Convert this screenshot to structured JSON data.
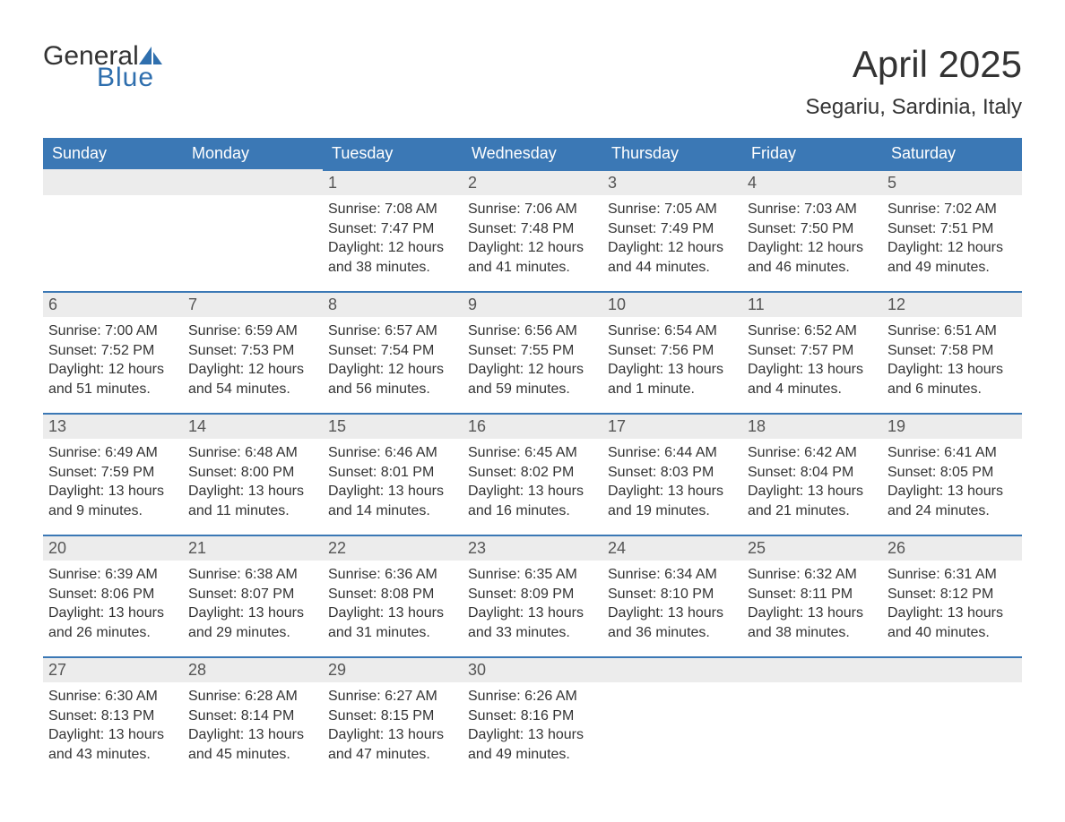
{
  "brand": {
    "general": "General",
    "blue": "Blue",
    "sail_color": "#2f6fae"
  },
  "title": "April 2025",
  "location": "Segariu, Sardinia, Italy",
  "header_bg": "#3b78b5",
  "header_fg": "#ffffff",
  "daybar_bg": "#ececec",
  "daybar_border": "#3b78b5",
  "body_bg": "#ffffff",
  "text_color": "#333333",
  "day_headers": [
    "Sunday",
    "Monday",
    "Tuesday",
    "Wednesday",
    "Thursday",
    "Friday",
    "Saturday"
  ],
  "weeks": [
    [
      {
        "day": "",
        "sunrise": "",
        "sunset": "",
        "daylight1": "",
        "daylight2": ""
      },
      {
        "day": "",
        "sunrise": "",
        "sunset": "",
        "daylight1": "",
        "daylight2": ""
      },
      {
        "day": "1",
        "sunrise": "Sunrise: 7:08 AM",
        "sunset": "Sunset: 7:47 PM",
        "daylight1": "Daylight: 12 hours",
        "daylight2": "and 38 minutes."
      },
      {
        "day": "2",
        "sunrise": "Sunrise: 7:06 AM",
        "sunset": "Sunset: 7:48 PM",
        "daylight1": "Daylight: 12 hours",
        "daylight2": "and 41 minutes."
      },
      {
        "day": "3",
        "sunrise": "Sunrise: 7:05 AM",
        "sunset": "Sunset: 7:49 PM",
        "daylight1": "Daylight: 12 hours",
        "daylight2": "and 44 minutes."
      },
      {
        "day": "4",
        "sunrise": "Sunrise: 7:03 AM",
        "sunset": "Sunset: 7:50 PM",
        "daylight1": "Daylight: 12 hours",
        "daylight2": "and 46 minutes."
      },
      {
        "day": "5",
        "sunrise": "Sunrise: 7:02 AM",
        "sunset": "Sunset: 7:51 PM",
        "daylight1": "Daylight: 12 hours",
        "daylight2": "and 49 minutes."
      }
    ],
    [
      {
        "day": "6",
        "sunrise": "Sunrise: 7:00 AM",
        "sunset": "Sunset: 7:52 PM",
        "daylight1": "Daylight: 12 hours",
        "daylight2": "and 51 minutes."
      },
      {
        "day": "7",
        "sunrise": "Sunrise: 6:59 AM",
        "sunset": "Sunset: 7:53 PM",
        "daylight1": "Daylight: 12 hours",
        "daylight2": "and 54 minutes."
      },
      {
        "day": "8",
        "sunrise": "Sunrise: 6:57 AM",
        "sunset": "Sunset: 7:54 PM",
        "daylight1": "Daylight: 12 hours",
        "daylight2": "and 56 minutes."
      },
      {
        "day": "9",
        "sunrise": "Sunrise: 6:56 AM",
        "sunset": "Sunset: 7:55 PM",
        "daylight1": "Daylight: 12 hours",
        "daylight2": "and 59 minutes."
      },
      {
        "day": "10",
        "sunrise": "Sunrise: 6:54 AM",
        "sunset": "Sunset: 7:56 PM",
        "daylight1": "Daylight: 13 hours",
        "daylight2": "and 1 minute."
      },
      {
        "day": "11",
        "sunrise": "Sunrise: 6:52 AM",
        "sunset": "Sunset: 7:57 PM",
        "daylight1": "Daylight: 13 hours",
        "daylight2": "and 4 minutes."
      },
      {
        "day": "12",
        "sunrise": "Sunrise: 6:51 AM",
        "sunset": "Sunset: 7:58 PM",
        "daylight1": "Daylight: 13 hours",
        "daylight2": "and 6 minutes."
      }
    ],
    [
      {
        "day": "13",
        "sunrise": "Sunrise: 6:49 AM",
        "sunset": "Sunset: 7:59 PM",
        "daylight1": "Daylight: 13 hours",
        "daylight2": "and 9 minutes."
      },
      {
        "day": "14",
        "sunrise": "Sunrise: 6:48 AM",
        "sunset": "Sunset: 8:00 PM",
        "daylight1": "Daylight: 13 hours",
        "daylight2": "and 11 minutes."
      },
      {
        "day": "15",
        "sunrise": "Sunrise: 6:46 AM",
        "sunset": "Sunset: 8:01 PM",
        "daylight1": "Daylight: 13 hours",
        "daylight2": "and 14 minutes."
      },
      {
        "day": "16",
        "sunrise": "Sunrise: 6:45 AM",
        "sunset": "Sunset: 8:02 PM",
        "daylight1": "Daylight: 13 hours",
        "daylight2": "and 16 minutes."
      },
      {
        "day": "17",
        "sunrise": "Sunrise: 6:44 AM",
        "sunset": "Sunset: 8:03 PM",
        "daylight1": "Daylight: 13 hours",
        "daylight2": "and 19 minutes."
      },
      {
        "day": "18",
        "sunrise": "Sunrise: 6:42 AM",
        "sunset": "Sunset: 8:04 PM",
        "daylight1": "Daylight: 13 hours",
        "daylight2": "and 21 minutes."
      },
      {
        "day": "19",
        "sunrise": "Sunrise: 6:41 AM",
        "sunset": "Sunset: 8:05 PM",
        "daylight1": "Daylight: 13 hours",
        "daylight2": "and 24 minutes."
      }
    ],
    [
      {
        "day": "20",
        "sunrise": "Sunrise: 6:39 AM",
        "sunset": "Sunset: 8:06 PM",
        "daylight1": "Daylight: 13 hours",
        "daylight2": "and 26 minutes."
      },
      {
        "day": "21",
        "sunrise": "Sunrise: 6:38 AM",
        "sunset": "Sunset: 8:07 PM",
        "daylight1": "Daylight: 13 hours",
        "daylight2": "and 29 minutes."
      },
      {
        "day": "22",
        "sunrise": "Sunrise: 6:36 AM",
        "sunset": "Sunset: 8:08 PM",
        "daylight1": "Daylight: 13 hours",
        "daylight2": "and 31 minutes."
      },
      {
        "day": "23",
        "sunrise": "Sunrise: 6:35 AM",
        "sunset": "Sunset: 8:09 PM",
        "daylight1": "Daylight: 13 hours",
        "daylight2": "and 33 minutes."
      },
      {
        "day": "24",
        "sunrise": "Sunrise: 6:34 AM",
        "sunset": "Sunset: 8:10 PM",
        "daylight1": "Daylight: 13 hours",
        "daylight2": "and 36 minutes."
      },
      {
        "day": "25",
        "sunrise": "Sunrise: 6:32 AM",
        "sunset": "Sunset: 8:11 PM",
        "daylight1": "Daylight: 13 hours",
        "daylight2": "and 38 minutes."
      },
      {
        "day": "26",
        "sunrise": "Sunrise: 6:31 AM",
        "sunset": "Sunset: 8:12 PM",
        "daylight1": "Daylight: 13 hours",
        "daylight2": "and 40 minutes."
      }
    ],
    [
      {
        "day": "27",
        "sunrise": "Sunrise: 6:30 AM",
        "sunset": "Sunset: 8:13 PM",
        "daylight1": "Daylight: 13 hours",
        "daylight2": "and 43 minutes."
      },
      {
        "day": "28",
        "sunrise": "Sunrise: 6:28 AM",
        "sunset": "Sunset: 8:14 PM",
        "daylight1": "Daylight: 13 hours",
        "daylight2": "and 45 minutes."
      },
      {
        "day": "29",
        "sunrise": "Sunrise: 6:27 AM",
        "sunset": "Sunset: 8:15 PM",
        "daylight1": "Daylight: 13 hours",
        "daylight2": "and 47 minutes."
      },
      {
        "day": "30",
        "sunrise": "Sunrise: 6:26 AM",
        "sunset": "Sunset: 8:16 PM",
        "daylight1": "Daylight: 13 hours",
        "daylight2": "and 49 minutes."
      },
      {
        "day": "",
        "sunrise": "",
        "sunset": "",
        "daylight1": "",
        "daylight2": ""
      },
      {
        "day": "",
        "sunrise": "",
        "sunset": "",
        "daylight1": "",
        "daylight2": ""
      },
      {
        "day": "",
        "sunrise": "",
        "sunset": "",
        "daylight1": "",
        "daylight2": ""
      }
    ]
  ]
}
